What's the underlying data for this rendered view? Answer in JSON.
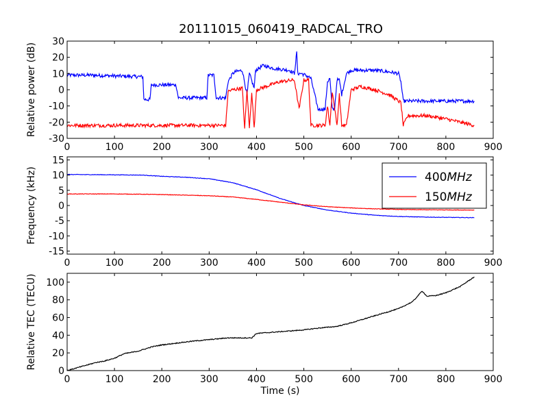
{
  "figure_title": "20111015_060419_RADCAL_TRO",
  "chart_data": [
    {
      "type": "line",
      "ylabel": "Relative power (dB)",
      "xlabel": "",
      "xlim": [
        0,
        900
      ],
      "ylim": [
        -30,
        30
      ],
      "xticks": [
        0,
        100,
        200,
        300,
        400,
        500,
        600,
        700,
        800,
        900
      ],
      "yticks": [
        -30,
        -20,
        -10,
        0,
        10,
        20,
        30
      ],
      "grid": false,
      "series": [
        {
          "color": "#0000ff",
          "x": [
            0,
            50,
            100,
            160,
            162,
            175,
            178,
            230,
            235,
            295,
            298,
            310,
            315,
            335,
            340,
            350,
            355,
            370,
            380,
            385,
            395,
            398,
            415,
            425,
            440,
            470,
            480,
            485,
            487,
            490,
            495,
            510,
            515,
            530,
            545,
            550,
            555,
            560,
            565,
            570,
            575,
            580,
            590,
            600,
            620,
            650,
            680,
            700,
            705,
            710,
            730,
            760,
            800,
            830,
            860
          ],
          "y": [
            9,
            9,
            8.5,
            8,
            -6,
            -6,
            3,
            3,
            -5,
            -5,
            9,
            9,
            -5,
            -5,
            5,
            10,
            11,
            12,
            -3,
            10,
            1,
            12,
            15,
            14,
            13,
            12,
            10,
            23,
            10,
            10,
            10,
            8,
            7,
            -12,
            -12,
            5,
            7,
            -12,
            -12,
            6,
            6,
            -3,
            10,
            12,
            12,
            12,
            11,
            10,
            5,
            -7,
            -7,
            -7,
            -7,
            -7,
            -7
          ]
        },
        {
          "color": "#ff0000",
          "x": [
            0,
            100,
            200,
            300,
            335,
            340,
            350,
            370,
            375,
            380,
            385,
            390,
            395,
            400,
            420,
            450,
            480,
            490,
            500,
            510,
            515,
            530,
            545,
            550,
            555,
            560,
            570,
            575,
            580,
            590,
            600,
            620,
            650,
            680,
            700,
            705,
            710,
            720,
            760,
            800,
            830,
            860
          ],
          "y": [
            -22,
            -22,
            -22,
            -22,
            -22,
            -1,
            0,
            1,
            -24,
            0,
            -24,
            -1,
            -24,
            0,
            2,
            5,
            6,
            -12,
            6,
            6,
            -22,
            -22,
            -22,
            -10,
            -22,
            -1,
            -22,
            -3,
            -22,
            -22,
            0,
            2,
            0,
            -3,
            -7,
            -8,
            -22,
            -16,
            -16,
            -18,
            -20,
            -22
          ]
        }
      ]
    },
    {
      "type": "line",
      "ylabel": "Frequency (kHz)",
      "xlabel": "",
      "xlim": [
        0,
        900
      ],
      "ylim": [
        -16,
        16
      ],
      "xticks": [
        0,
        100,
        200,
        300,
        400,
        500,
        600,
        700,
        800,
        900
      ],
      "yticks": [
        -15,
        -10,
        -5,
        0,
        5,
        10,
        15
      ],
      "grid": false,
      "legend_position": "top-right",
      "series": [
        {
          "name": "400MHz",
          "color": "#0000ff",
          "x": [
            0,
            100,
            160,
            200,
            250,
            300,
            350,
            400,
            450,
            500,
            550,
            600,
            650,
            700,
            750,
            800,
            860
          ],
          "y": [
            10.2,
            10.1,
            10,
            9.6,
            9.3,
            8.8,
            7.5,
            5.2,
            2.3,
            0,
            -1.5,
            -2.5,
            -3.2,
            -3.6,
            -3.8,
            -3.9,
            -4
          ]
        },
        {
          "name": "150MHz",
          "color": "#ff0000",
          "x": [
            0,
            100,
            160,
            200,
            250,
            300,
            350,
            400,
            450,
            500,
            550,
            600,
            650,
            700,
            750,
            800,
            860
          ],
          "y": [
            3.8,
            3.8,
            3.7,
            3.6,
            3.4,
            3.2,
            2.8,
            2,
            1.1,
            0.2,
            -0.4,
            -0.8,
            -1.1,
            -1.3,
            -1.4,
            -1.45,
            -1.5
          ]
        }
      ]
    },
    {
      "type": "line",
      "ylabel": "Relative TEC (TECU)",
      "xlabel": "Time (s)",
      "xlim": [
        0,
        900
      ],
      "ylim": [
        0,
        110
      ],
      "xticks": [
        0,
        100,
        200,
        300,
        400,
        500,
        600,
        700,
        800,
        900
      ],
      "yticks": [
        0,
        20,
        40,
        60,
        80,
        100
      ],
      "grid": false,
      "series": [
        {
          "color": "#000000",
          "x": [
            0,
            20,
            40,
            60,
            80,
            100,
            120,
            150,
            180,
            200,
            230,
            260,
            300,
            340,
            370,
            390,
            400,
            450,
            500,
            530,
            570,
            600,
            650,
            700,
            730,
            750,
            760,
            780,
            800,
            830,
            860
          ],
          "y": [
            0,
            3,
            6,
            9,
            11,
            14,
            19,
            22,
            27,
            29,
            31,
            33,
            35,
            37,
            37,
            37,
            42,
            44,
            46,
            48,
            50,
            54,
            62,
            70,
            78,
            90,
            84,
            85,
            88,
            95,
            106
          ]
        }
      ]
    }
  ]
}
